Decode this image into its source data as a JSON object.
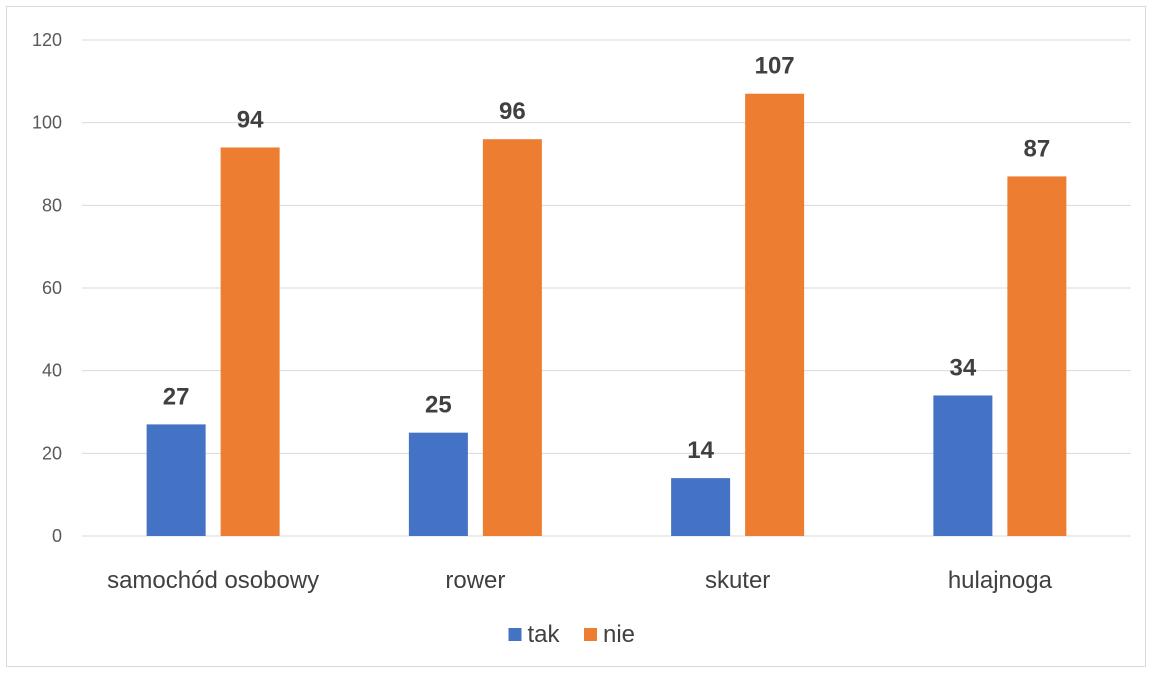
{
  "chart_data": {
    "type": "bar",
    "title": "",
    "xlabel": "",
    "ylabel": "",
    "categories": [
      "samochód osobowy",
      "rower",
      "skuter",
      "hulajnoga"
    ],
    "series": [
      {
        "name": "tak",
        "values": [
          27,
          25,
          14,
          34
        ],
        "color": "#4472C4"
      },
      {
        "name": "nie",
        "values": [
          94,
          96,
          107,
          87
        ],
        "color": "#ED7D31"
      }
    ],
    "ylim": [
      0,
      120
    ],
    "yticks": [
      0,
      20,
      40,
      60,
      80,
      100,
      120
    ],
    "grid": true,
    "legend_position": "bottom",
    "data_labels": true
  }
}
